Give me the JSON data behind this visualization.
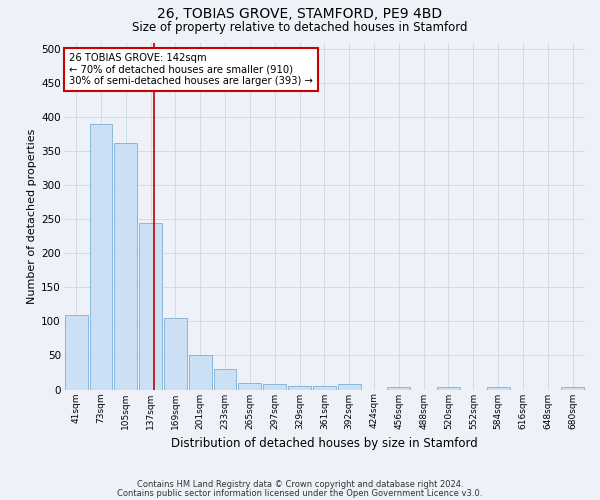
{
  "title1": "26, TOBIAS GROVE, STAMFORD, PE9 4BD",
  "title2": "Size of property relative to detached houses in Stamford",
  "xlabel": "Distribution of detached houses by size in Stamford",
  "ylabel": "Number of detached properties",
  "categories": [
    "41sqm",
    "73sqm",
    "105sqm",
    "137sqm",
    "169sqm",
    "201sqm",
    "233sqm",
    "265sqm",
    "297sqm",
    "329sqm",
    "361sqm",
    "392sqm",
    "424sqm",
    "456sqm",
    "488sqm",
    "520sqm",
    "552sqm",
    "584sqm",
    "616sqm",
    "648sqm",
    "680sqm"
  ],
  "values": [
    110,
    390,
    362,
    245,
    105,
    50,
    30,
    10,
    8,
    5,
    5,
    8,
    0,
    3,
    0,
    3,
    0,
    3,
    0,
    0,
    3
  ],
  "bar_color": "#cce0f5",
  "bar_edge_color": "#7ab0d8",
  "grid_color": "#d0dce8",
  "background_color": "#eef2f8",
  "red_line_color": "#bb0000",
  "annotation_text": "26 TOBIAS GROVE: 142sqm\n← 70% of detached houses are smaller (910)\n30% of semi-detached houses are larger (393) →",
  "annotation_box_color": "#ffffff",
  "annotation_box_edge": "#cc0000",
  "footer1": "Contains HM Land Registry data © Crown copyright and database right 2024.",
  "footer2": "Contains public sector information licensed under the Open Government Licence v3.0.",
  "ylim": [
    0,
    510
  ],
  "yticks": [
    0,
    50,
    100,
    150,
    200,
    250,
    300,
    350,
    400,
    450,
    500
  ],
  "red_line_x": 3.12
}
